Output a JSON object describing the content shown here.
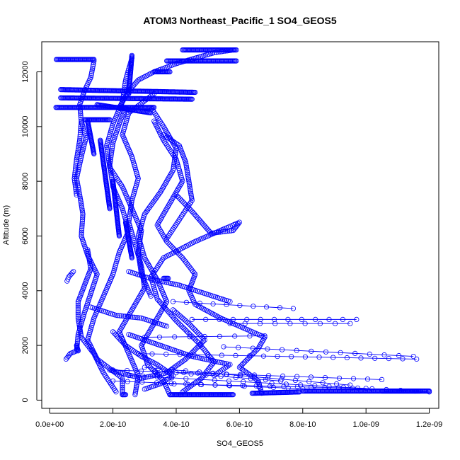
{
  "chart_data": {
    "type": "scatter",
    "title": "ATOM3 Northeast_Pacific_1 SO4_GEOS5",
    "xlabel": "SO4_GEOS5",
    "ylabel": "Altitude (m)",
    "xlim": [
      -2.5e-11,
      1.23e-09
    ],
    "ylim": [
      -300,
      13100
    ],
    "x_ticks": [
      0,
      2e-10,
      4e-10,
      6e-10,
      8e-10,
      1e-09,
      1.2e-09
    ],
    "x_tick_labels": [
      "0.0e+00",
      "2.0e-10",
      "4.0e-10",
      "6.0e-10",
      "8.0e-10",
      "1.0e-09",
      "1.2e-09"
    ],
    "y_ticks": [
      0,
      2000,
      4000,
      6000,
      8000,
      10000,
      12000
    ],
    "y_tick_labels": [
      "0",
      "2000",
      "4000",
      "6000",
      "8000",
      "10000",
      "12000"
    ],
    "grid": false,
    "marker": "open-circle",
    "color": "#0000ff",
    "series": [
      {
        "profiles": [
          [
            [
              2.3e-10,
              200
            ],
            [
              2.3e-10,
              800
            ],
            [
              1.5e-10,
              1500
            ],
            [
              1.2e-10,
              2200
            ],
            [
              1.4e-10,
              3000
            ],
            [
              1.7e-10,
              3800
            ],
            [
              2e-10,
              4600
            ],
            [
              2.2e-10,
              5400
            ],
            [
              2.5e-10,
              6200
            ],
            [
              2.3e-10,
              7000
            ],
            [
              2e-10,
              7800
            ],
            [
              1.9e-10,
              8600
            ],
            [
              2e-10,
              9400
            ],
            [
              2.2e-10,
              10100
            ],
            [
              2.4e-10,
              10700
            ]
          ],
          [
            [
              2.7e-10,
              200
            ],
            [
              2.8e-10,
              900
            ],
            [
              2.5e-10,
              1700
            ],
            [
              2.2e-10,
              2500
            ],
            [
              2.6e-10,
              3300
            ],
            [
              3e-10,
              4100
            ],
            [
              2.9e-10,
              4900
            ],
            [
              2.7e-10,
              5700
            ],
            [
              2.5e-10,
              6500
            ],
            [
              2.6e-10,
              7300
            ],
            [
              2.8e-10,
              8100
            ],
            [
              2.6e-10,
              8900
            ],
            [
              2.3e-10,
              9700
            ],
            [
              2.5e-10,
              10500
            ],
            [
              3.3e-10,
              11200
            ]
          ],
          [
            [
              3.8e-10,
              200
            ],
            [
              3.6e-10,
              700
            ],
            [
              3.1e-10,
              1300
            ],
            [
              2.9e-10,
              2000
            ],
            [
              3.3e-10,
              2800
            ],
            [
              3.7e-10,
              3600
            ],
            [
              3.4e-10,
              4400
            ],
            [
              3e-10,
              5200
            ],
            [
              2.8e-10,
              6000
            ],
            [
              3e-10,
              6800
            ],
            [
              3.5e-10,
              7600
            ],
            [
              3.9e-10,
              8400
            ],
            [
              4e-10,
              9200
            ],
            [
              3.6e-10,
              10000
            ],
            [
              3.2e-10,
              10700
            ]
          ],
          [
            [
              6.7e-10,
              250
            ],
            [
              6.6e-10,
              700
            ],
            [
              6e-10,
              1200
            ],
            [
              6.6e-10,
              1900
            ],
            [
              6.8e-10,
              2300
            ],
            [
              6.2e-10,
              2600
            ],
            [
              5.4e-10,
              3000
            ],
            [
              4.6e-10,
              3500
            ],
            [
              4.4e-10,
              4000
            ],
            [
              4.6e-10,
              4600
            ],
            [
              4.2e-10,
              5200
            ],
            [
              3.7e-10,
              5800
            ],
            [
              3.4e-10,
              6400
            ],
            [
              3.8e-10,
              7200
            ],
            [
              4.2e-10,
              8000
            ],
            [
              4e-10,
              8800
            ],
            [
              3.6e-10,
              9500
            ],
            [
              3.3e-10,
              10200
            ]
          ],
          [
            [
              5.2e-11,
              1500
            ],
            [
              6.5e-11,
              1700
            ],
            [
              8.5e-11,
              1800
            ],
            [
              9e-11,
              2400
            ],
            [
              1.1e-10,
              3200
            ],
            [
              1.3e-10,
              3900
            ],
            [
              1.5e-10,
              4600
            ],
            [
              1.2e-10,
              5300
            ],
            [
              1e-10,
              6000
            ],
            [
              1.05e-10,
              6800
            ],
            [
              9.5e-11,
              7500
            ],
            [
              8.5e-11,
              8100
            ],
            [
              1e-10,
              8900
            ],
            [
              1.15e-10,
              9600
            ],
            [
              1e-10,
              10200
            ]
          ],
          [
            [
              5.5e-11,
              4350
            ],
            [
              6e-11,
              4500
            ],
            [
              7.5e-11,
              4700
            ]
          ],
          [
            [
              2.1e-10,
              300
            ],
            [
              1.7e-10,
              1000
            ],
            [
              1.4e-10,
              1700
            ],
            [
              1e-10,
              2300
            ],
            [
              9e-11,
              3000
            ],
            [
              9e-11,
              3600
            ],
            [
              1.1e-10,
              4200
            ],
            [
              1.3e-10,
              4800
            ],
            [
              1.2e-10,
              5500
            ]
          ],
          [
            [
              4.2e-10,
              300
            ],
            [
              4.8e-10,
              800
            ],
            [
              5.2e-10,
              1400
            ],
            [
              4.7e-10,
              2100
            ],
            [
              4e-10,
              2900
            ],
            [
              3.4e-10,
              3700
            ],
            [
              3.2e-10,
              4500
            ],
            [
              3.6e-10,
              5200
            ],
            [
              4.6e-10,
              5800
            ],
            [
              5.6e-10,
              6300
            ],
            [
              6e-10,
              6500
            ],
            [
              5.8e-10,
              6200
            ],
            [
              5.1e-10,
              6100
            ],
            [
              4.5e-10,
              6900
            ],
            [
              4e-10,
              7500
            ]
          ],
          [
            [
              2.5e-10,
              2400
            ],
            [
              3.5e-10,
              2000
            ],
            [
              4.5e-10,
              1600
            ],
            [
              5.7e-10,
              1300
            ],
            [
              5.2e-10,
              900
            ]
          ],
          [
            [
              1.9e-10,
              1100
            ],
            [
              2.9e-10,
              800
            ],
            [
              3.7e-10,
              1000
            ],
            [
              4.3e-10,
              1500
            ],
            [
              4.9e-10,
              2200
            ],
            [
              4.4e-10,
              2800
            ],
            [
              3.9e-10,
              3300
            ]
          ],
          [
            [
              2.2e-10,
              10700
            ],
            [
              2.5e-10,
              11300
            ],
            [
              2.8e-10,
              11700
            ],
            [
              3.3e-10,
              12000
            ],
            [
              4e-10,
              12300
            ],
            [
              4.6e-10,
              12500
            ],
            [
              5.2e-10,
              12700
            ],
            [
              5.8e-10,
              12800
            ]
          ],
          [
            [
              1.4e-10,
              12400
            ],
            [
              1.3e-10,
              11800
            ],
            [
              1.1e-10,
              11300
            ],
            [
              9.5e-11,
              10800
            ],
            [
              1e-10,
              10200
            ],
            [
              9.5e-11,
              9500
            ],
            [
              8.5e-11,
              8800
            ],
            [
              7.8e-11,
              8100
            ],
            [
              8.5e-11,
              7500
            ]
          ],
          [
            [
              2.6e-10,
              12500
            ],
            [
              2.4e-10,
              11700
            ],
            [
              2.3e-10,
              10900
            ],
            [
              2e-10,
              10100
            ],
            [
              1.8e-10,
              9300
            ],
            [
              1.9e-10,
              8500
            ],
            [
              2.3e-10,
              7800
            ],
            [
              2.6e-10,
              7000
            ],
            [
              2.9e-10,
              6200
            ],
            [
              2.8e-10,
              5400
            ],
            [
              2.9e-10,
              4600
            ],
            [
              3.2e-10,
              3800
            ]
          ],
          [
            [
              3.6e-10,
              9700
            ],
            [
              4.1e-10,
              9300
            ],
            [
              4.3e-10,
              8700
            ],
            [
              4.4e-10,
              8000
            ],
            [
              4.5e-10,
              7300
            ],
            [
              4.1e-10,
              6600
            ],
            [
              3.7e-10,
              5900
            ]
          ],
          [
            [
              2.5e-10,
              4700
            ],
            [
              3.3e-10,
              4400
            ],
            [
              4.1e-10,
              4200
            ],
            [
              4.9e-10,
              3900
            ],
            [
              5.7e-10,
              3600
            ]
          ],
          [
            [
              1.3e-10,
              3400
            ],
            [
              2.1e-10,
              3100
            ],
            [
              2.9e-10,
              3000
            ],
            [
              3.7e-10,
              2700
            ]
          ],
          [
            [
              3e-10,
              400
            ],
            [
              3.5e-10,
              600
            ],
            [
              3.9e-10,
              900
            ],
            [
              3.4e-10,
              1300
            ],
            [
              2.9e-10,
              1600
            ],
            [
              2.4e-10,
              2000
            ],
            [
              2e-10,
              2500
            ]
          ]
        ]
      },
      {
        "dense_segments": [
          [
            [
              2.1e-11,
              12450
            ],
            [
              1.4e-10,
              12450
            ]
          ],
          [
            [
              3.5e-11,
              11350
            ],
            [
              4.6e-10,
              11250
            ]
          ],
          [
            [
              3.5e-11,
              11050
            ],
            [
              4.5e-10,
              11000
            ]
          ],
          [
            [
              2e-11,
              10700
            ],
            [
              3.3e-10,
              10700
            ]
          ],
          [
            [
              1.1e-10,
              10250
            ],
            [
              1.9e-10,
              10250
            ]
          ],
          [
            [
              1.5e-10,
              10800
            ],
            [
              3.2e-10,
              10500
            ]
          ],
          [
            [
              3.8e-10,
              12000
            ],
            [
              3.3e-10,
              12000
            ]
          ],
          [
            [
              4.2e-10,
              12800
            ],
            [
              5.9e-10,
              12800
            ]
          ],
          [
            [
              3.7e-10,
              12400
            ],
            [
              5.9e-10,
              12400
            ]
          ],
          [
            [
              2.6e-10,
              12600
            ],
            [
              2.5e-10,
              11200
            ]
          ],
          [
            [
              2.3e-10,
              200
            ],
            [
              2.4e-10,
              200
            ]
          ],
          [
            [
              3.8e-10,
              200
            ],
            [
              5.8e-10,
              200
            ]
          ],
          [
            [
              6.4e-10,
              250
            ],
            [
              7.9e-10,
              300
            ]
          ],
          [
            [
              8e-10,
              330
            ],
            [
              1.2e-09,
              330
            ]
          ],
          [
            [
              1.05e-09,
              330
            ],
            [
              1.17e-09,
              330
            ]
          ],
          [
            [
              1.2e-10,
              10200
            ],
            [
              1.4e-10,
              9000
            ]
          ],
          [
            [
              1.6e-10,
              9500
            ],
            [
              1.9e-10,
              7000
            ]
          ],
          [
            [
              2e-10,
              8000
            ],
            [
              2.2e-10,
              6000
            ]
          ],
          [
            [
              2.4e-10,
              6500
            ],
            [
              2.6e-10,
              5200
            ]
          ],
          [
            [
              8.5e-11,
              2000
            ],
            [
              9e-11,
              1800
            ]
          ],
          [
            [
              3.6e-10,
              4450
            ],
            [
              3.75e-10,
              4450
            ]
          ]
        ]
      },
      {
        "connected_lines": [
          [
            [
              3e-10,
              2300
            ],
            [
              6.8e-10,
              2350
            ]
          ],
          [
            [
              4.5e-10,
              2950
            ],
            [
              9.7e-10,
              2950
            ]
          ],
          [
            [
              5.7e-10,
              2800
            ],
            [
              9.5e-10,
              2800
            ]
          ],
          [
            [
              3.9e-10,
              3600
            ],
            [
              7.7e-10,
              3350
            ]
          ],
          [
            [
              5.5e-10,
              1950
            ],
            [
              1.15e-09,
              1600
            ]
          ],
          [
            [
              2.8e-10,
              1700
            ],
            [
              1.16e-09,
              1500
            ]
          ],
          [
            [
              2e-10,
              1100
            ],
            [
              1.05e-09,
              750
            ]
          ],
          [
            [
              2.5e-10,
              900
            ],
            [
              1.2e-09,
              300
            ]
          ],
          [
            [
              3.5e-10,
              600
            ],
            [
              1e-09,
              430
            ]
          ],
          [
            [
              3e-10,
              1200
            ],
            [
              9.5e-10,
              550
            ]
          ],
          [
            [
              4e-10,
              1000
            ],
            [
              7.3e-10,
              700
            ]
          ],
          [
            [
              2e-10,
              700
            ],
            [
              8e-10,
              420
            ]
          ]
        ]
      }
    ]
  }
}
